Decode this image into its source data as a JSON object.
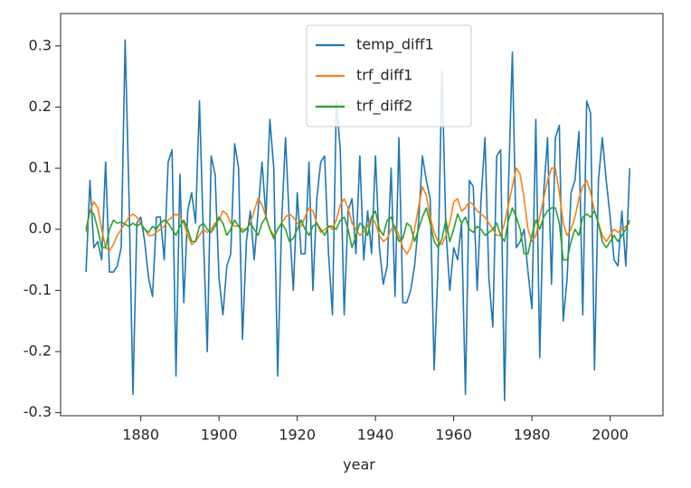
{
  "chart_data": {
    "type": "line",
    "xlabel": "year",
    "x": [
      1866,
      1867,
      1868,
      1869,
      1870,
      1871,
      1872,
      1873,
      1874,
      1875,
      1876,
      1877,
      1878,
      1879,
      1880,
      1881,
      1882,
      1883,
      1884,
      1885,
      1886,
      1887,
      1888,
      1889,
      1890,
      1891,
      1892,
      1893,
      1894,
      1895,
      1896,
      1897,
      1898,
      1899,
      1900,
      1901,
      1902,
      1903,
      1904,
      1905,
      1906,
      1907,
      1908,
      1909,
      1910,
      1911,
      1912,
      1913,
      1914,
      1915,
      1916,
      1917,
      1918,
      1919,
      1920,
      1921,
      1922,
      1923,
      1924,
      1925,
      1926,
      1927,
      1928,
      1929,
      1930,
      1931,
      1932,
      1933,
      1934,
      1935,
      1936,
      1937,
      1938,
      1939,
      1940,
      1941,
      1942,
      1943,
      1944,
      1945,
      1946,
      1947,
      1948,
      1949,
      1950,
      1951,
      1952,
      1953,
      1954,
      1955,
      1956,
      1957,
      1958,
      1959,
      1960,
      1961,
      1962,
      1963,
      1964,
      1965,
      1966,
      1967,
      1968,
      1969,
      1970,
      1971,
      1972,
      1973,
      1974,
      1975,
      1976,
      1977,
      1978,
      1979,
      1980,
      1981,
      1982,
      1983,
      1984,
      1985,
      1986,
      1987,
      1988,
      1989,
      1990,
      1991,
      1992,
      1993,
      1994,
      1995,
      1996,
      1997,
      1998,
      1999,
      2000,
      2001,
      2002,
      2003,
      2004,
      2005
    ],
    "series": [
      {
        "name": "temp_diff1",
        "color": "#1f77b4",
        "values": [
          -0.07,
          0.08,
          -0.03,
          -0.02,
          -0.05,
          0.11,
          -0.07,
          -0.07,
          -0.06,
          -0.03,
          0.31,
          0.05,
          -0.27,
          0.01,
          0.02,
          -0.02,
          -0.08,
          -0.11,
          0.02,
          0.02,
          -0.05,
          0.11,
          0.13,
          -0.24,
          0.09,
          -0.12,
          0.03,
          0.06,
          0.01,
          0.21,
          -0.01,
          -0.2,
          0.12,
          0.09,
          -0.08,
          -0.14,
          -0.06,
          -0.04,
          0.14,
          0.1,
          -0.18,
          -0.02,
          0.03,
          -0.05,
          0.03,
          0.11,
          0.02,
          0.18,
          0.1,
          -0.24,
          0.01,
          0.15,
          0.01,
          -0.1,
          0.06,
          -0.04,
          -0.04,
          0.11,
          -0.1,
          0.05,
          0.11,
          0.12,
          -0.04,
          -0.14,
          0.21,
          0.13,
          -0.14,
          0.03,
          0.05,
          -0.04,
          0.12,
          -0.05,
          0.03,
          -0.04,
          0.12,
          -0.03,
          -0.09,
          -0.06,
          0.1,
          -0.11,
          0.15,
          -0.12,
          -0.12,
          -0.1,
          -0.06,
          0.01,
          0.12,
          0.08,
          0.05,
          -0.23,
          -0.06,
          0.26,
          0.0,
          -0.1,
          -0.03,
          -0.05,
          0.01,
          -0.27,
          0.08,
          0.07,
          -0.1,
          0.05,
          0.15,
          -0.08,
          -0.16,
          0.12,
          0.13,
          -0.28,
          0.07,
          0.29,
          -0.03,
          -0.02,
          0.0,
          -0.07,
          -0.13,
          0.18,
          -0.21,
          0.06,
          0.15,
          -0.09,
          0.15,
          0.17,
          -0.15,
          -0.08,
          0.06,
          0.08,
          0.16,
          -0.14,
          0.21,
          0.19,
          -0.23,
          0.08,
          0.15,
          0.08,
          0.02,
          -0.05,
          -0.06,
          0.03,
          -0.06,
          0.1
        ]
      },
      {
        "name": "trf_diff1",
        "color": "#ff7f0e",
        "values": [
          -0.005,
          0.03,
          0.045,
          0.035,
          0.0,
          -0.03,
          -0.035,
          -0.025,
          -0.01,
          0.0,
          0.01,
          0.02,
          0.025,
          0.02,
          0.01,
          0.0,
          -0.01,
          -0.01,
          -0.005,
          0.0,
          0.005,
          0.015,
          0.02,
          0.025,
          0.02,
          0.01,
          -0.01,
          -0.025,
          -0.02,
          -0.01,
          0.0,
          -0.005,
          0.0,
          0.01,
          0.015,
          0.03,
          0.025,
          0.01,
          0.005,
          0.005,
          0.0,
          0.0,
          0.01,
          0.03,
          0.05,
          0.04,
          0.02,
          0.0,
          -0.01,
          0.0,
          0.01,
          0.02,
          0.025,
          0.02,
          0.01,
          0.005,
          0.02,
          0.035,
          0.03,
          0.01,
          -0.005,
          0.0,
          0.005,
          0.0,
          0.015,
          0.04,
          0.05,
          0.035,
          0.01,
          0.0,
          -0.01,
          -0.005,
          0.005,
          0.02,
          0.01,
          -0.01,
          -0.02,
          -0.015,
          0.0,
          0.005,
          -0.01,
          -0.03,
          -0.04,
          -0.03,
          0.0,
          0.035,
          0.07,
          0.055,
          0.02,
          -0.005,
          -0.02,
          -0.025,
          -0.01,
          0.01,
          0.045,
          0.05,
          0.03,
          0.035,
          0.045,
          0.04,
          0.03,
          0.025,
          0.02,
          0.01,
          0.0,
          -0.01,
          -0.01,
          0.01,
          0.04,
          0.07,
          0.1,
          0.09,
          0.05,
          0.0,
          -0.02,
          -0.01,
          0.02,
          0.05,
          0.08,
          0.1,
          0.1,
          0.06,
          0.01,
          -0.01,
          0.0,
          0.02,
          0.05,
          0.07,
          0.08,
          0.06,
          0.03,
          0.01,
          -0.01,
          -0.02,
          -0.01,
          0.0,
          -0.005,
          0.0,
          0.005,
          0.01
        ]
      },
      {
        "name": "trf_diff2",
        "color": "#2ca02c",
        "values": [
          0.0,
          0.03,
          0.025,
          0.0,
          -0.03,
          -0.03,
          0.0,
          0.015,
          0.01,
          0.012,
          0.008,
          0.005,
          0.01,
          0.005,
          0.01,
          0.0,
          -0.005,
          0.005,
          0.0,
          0.01,
          0.015,
          0.01,
          0.0,
          -0.01,
          0.005,
          0.015,
          0.0,
          -0.02,
          -0.02,
          0.005,
          0.01,
          0.0,
          -0.005,
          0.005,
          0.02,
          0.01,
          -0.01,
          0.0,
          0.015,
          0.005,
          -0.005,
          0.0,
          0.01,
          0.0,
          -0.01,
          0.01,
          0.02,
          0.0,
          -0.015,
          0.0,
          0.01,
          0.0,
          -0.02,
          -0.015,
          0.0,
          0.015,
          0.0,
          -0.01,
          0.005,
          0.01,
          0.0,
          -0.01,
          0.005,
          0.005,
          0.0,
          0.015,
          0.02,
          0.0,
          -0.03,
          -0.01,
          0.01,
          0.005,
          -0.01,
          0.02,
          0.03,
          0.0,
          -0.01,
          0.015,
          0.02,
          0.0,
          -0.02,
          -0.015,
          0.01,
          0.005,
          -0.02,
          0.0,
          0.02,
          0.035,
          0.01,
          -0.02,
          -0.03,
          -0.015,
          0.015,
          -0.02,
          0.0,
          0.025,
          0.01,
          0.02,
          0.0,
          -0.005,
          0.005,
          0.0,
          -0.01,
          -0.005,
          0.0,
          0.01,
          -0.01,
          -0.02,
          0.015,
          0.035,
          0.02,
          0.0,
          -0.04,
          -0.04,
          -0.01,
          0.015,
          0.0,
          0.02,
          0.03,
          0.035,
          0.035,
          0.01,
          -0.05,
          -0.05,
          -0.02,
          0.0,
          -0.01,
          0.02,
          0.025,
          0.02,
          0.03,
          0.01,
          -0.02,
          -0.03,
          -0.02,
          -0.01,
          -0.02,
          -0.01,
          0.0,
          0.015
        ]
      }
    ],
    "xlim": [
      1859.5,
      2013.5
    ],
    "xticks": [
      1880,
      1900,
      1920,
      1940,
      1960,
      1980,
      2000
    ],
    "ylim": [
      -0.305,
      0.353
    ],
    "yticks": [
      -0.3,
      -0.2,
      -0.1,
      {
        "value": 0,
        "label": "0.0"
      },
      0.1,
      0.2,
      0.3
    ],
    "legend": "upper center"
  }
}
